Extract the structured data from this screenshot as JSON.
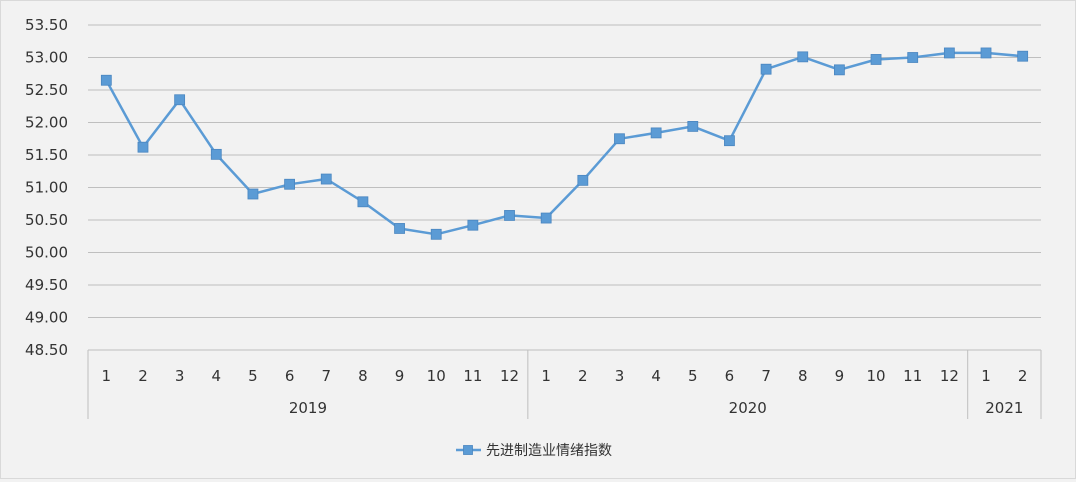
{
  "chart_data": {
    "type": "line",
    "title": "",
    "xlabel": "",
    "ylabel": "",
    "ylim": [
      48.5,
      53.5
    ],
    "y_ticks": [
      "48.50",
      "49.00",
      "49.50",
      "50.00",
      "50.50",
      "51.00",
      "51.50",
      "52.00",
      "52.50",
      "53.00",
      "53.50"
    ],
    "grid": "horizontal",
    "legend_position": "bottom-center",
    "years": [
      {
        "label": "2019",
        "months": 12
      },
      {
        "label": "2020",
        "months": 12
      },
      {
        "label": "2021",
        "months": 2
      }
    ],
    "categories": [
      "1",
      "2",
      "3",
      "4",
      "5",
      "6",
      "7",
      "8",
      "9",
      "10",
      "11",
      "12",
      "1",
      "2",
      "3",
      "4",
      "5",
      "6",
      "7",
      "8",
      "9",
      "10",
      "11",
      "12",
      "1",
      "2"
    ],
    "series": [
      {
        "name": "先进制造业情绪指数",
        "color": "#5b9bd5",
        "marker": "square",
        "values": [
          52.65,
          51.62,
          52.35,
          51.51,
          50.9,
          51.05,
          51.13,
          50.78,
          50.37,
          50.28,
          50.42,
          50.57,
          50.53,
          51.11,
          51.75,
          51.84,
          51.94,
          51.72,
          52.82,
          53.01,
          52.81,
          52.97,
          53.0,
          53.07,
          53.07,
          53.02
        ]
      }
    ]
  }
}
